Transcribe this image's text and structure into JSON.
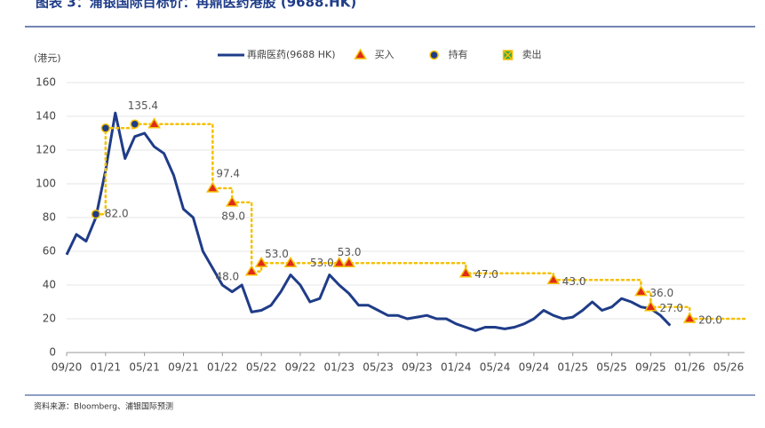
{
  "chart_data": {
    "type": "line",
    "title": "图表 3：浦银国际目标价：再鼎医药港股 (9688.HK)",
    "source": "资料来源：Bloomberg、浦银国际预测",
    "ylabel": "(港元)",
    "xlim": [
      "2020-09",
      "2026-05"
    ],
    "xticks": [
      {
        "value": "2020-09",
        "label": "09/20"
      },
      {
        "value": "2021-01",
        "label": "01/21"
      },
      {
        "value": "2021-05",
        "label": "05/21"
      },
      {
        "value": "2021-09",
        "label": "09/21"
      },
      {
        "value": "2022-01",
        "label": "01/22"
      },
      {
        "value": "2022-05",
        "label": "05/22"
      },
      {
        "value": "2022-09",
        "label": "09/22"
      },
      {
        "value": "2023-01",
        "label": "01/23"
      },
      {
        "value": "2023-05",
        "label": "05/23"
      },
      {
        "value": "2023-09",
        "label": "09/23"
      },
      {
        "value": "2024-01",
        "label": "01/24"
      },
      {
        "value": "2024-05",
        "label": "05/24"
      },
      {
        "value": "2024-09",
        "label": "09/24"
      },
      {
        "value": "2025-01",
        "label": "01/25"
      },
      {
        "value": "2025-05",
        "label": "05/25"
      },
      {
        "value": "2025-09",
        "label": "09/25"
      },
      {
        "value": "2026-01",
        "label": "01/26"
      },
      {
        "value": "2026-05",
        "label": "05/26"
      }
    ],
    "ylim": [
      0,
      160
    ],
    "yticks": [
      0,
      20,
      40,
      60,
      80,
      100,
      120,
      140,
      160
    ],
    "grid": true,
    "target_color": "#f5c000",
    "series": [
      {
        "name": "再鼎医药(9688 HK)",
        "color": "#1f3c88",
        "x": [
          "2020-09",
          "2020-10",
          "2020-11",
          "2020-12",
          "2021-01",
          "2021-02",
          "2021-03",
          "2021-04",
          "2021-05",
          "2021-06",
          "2021-07",
          "2021-08",
          "2021-09",
          "2021-10",
          "2021-11",
          "2021-12",
          "2022-01",
          "2022-02",
          "2022-03",
          "2022-04",
          "2022-05",
          "2022-06",
          "2022-07",
          "2022-08",
          "2022-09",
          "2022-10",
          "2022-11",
          "2022-12",
          "2023-01",
          "2023-02",
          "2023-03",
          "2023-04",
          "2023-05",
          "2023-06",
          "2023-07",
          "2023-08",
          "2023-09",
          "2023-10",
          "2023-11",
          "2023-12",
          "2024-01",
          "2024-02",
          "2024-03",
          "2024-04",
          "2024-05",
          "2024-06",
          "2024-07",
          "2024-08",
          "2024-09",
          "2024-10",
          "2024-11",
          "2024-12",
          "2025-01",
          "2025-02",
          "2025-03",
          "2025-04",
          "2025-05",
          "2025-06",
          "2025-07",
          "2025-08",
          "2025-09",
          "2025-10",
          "2025-11"
        ],
        "values": [
          58,
          70,
          66,
          80,
          108,
          142,
          115,
          128,
          130,
          122,
          118,
          105,
          85,
          80,
          60,
          50,
          40,
          36,
          40,
          24,
          25,
          28,
          36,
          46,
          40,
          30,
          32,
          46,
          40,
          35,
          28,
          28,
          25,
          22,
          22,
          20,
          21,
          22,
          20,
          20,
          17,
          15,
          13,
          15,
          15,
          14,
          15,
          17,
          20,
          25,
          22,
          20,
          21,
          25,
          30,
          25,
          27,
          32,
          30,
          27,
          26,
          22,
          16
        ]
      },
      {
        "name": "买入",
        "color": "#e02a1a",
        "x": [
          "2021-06",
          "2021-12",
          "2022-02",
          "2022-04",
          "2022-05",
          "2022-08",
          "2023-01",
          "2023-02",
          "2024-02",
          "2024-11",
          "2025-08",
          "2025-09",
          "2026-01"
        ],
        "values": [
          135.4,
          97.4,
          89.0,
          48.0,
          53.0,
          53.0,
          53.0,
          53.0,
          47.0,
          43.0,
          36.0,
          27.0,
          20.0
        ],
        "value_labels": [
          null,
          "97.4",
          "89.0",
          "48.0",
          "53.0",
          "53.0",
          "53.0",
          null,
          "47.0",
          "43.0",
          "36.0",
          "27.0",
          "20.0"
        ]
      },
      {
        "name": "持有",
        "color": "#1f3c88",
        "x": [
          "2020-12",
          "2021-01",
          "2021-04"
        ],
        "values": [
          82.0,
          133,
          135.4
        ],
        "value_labels": [
          "82.0",
          null,
          "135.4"
        ]
      },
      {
        "name": "卖出",
        "color": "#3aa64a",
        "x": [],
        "values": [],
        "value_labels": []
      }
    ]
  }
}
